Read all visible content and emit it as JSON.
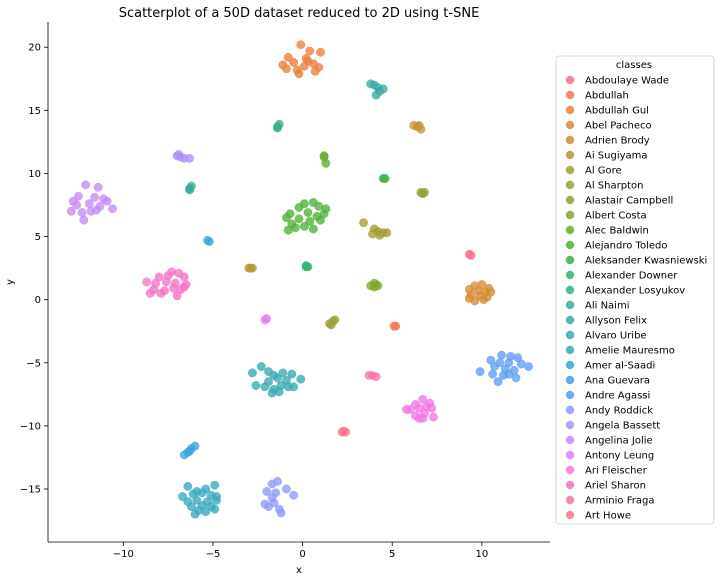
{
  "chart_data": {
    "type": "scatter",
    "title": "Scatterplot of a 50D dataset reduced to 2D using t-SNE",
    "xlabel": "x",
    "ylabel": "y",
    "xlim": [
      -14.2,
      13.8
    ],
    "ylim": [
      -19.2,
      22.0
    ],
    "x_ticks": [
      -10,
      -5,
      0,
      5,
      10
    ],
    "y_ticks": [
      -15,
      -10,
      -5,
      0,
      5,
      10,
      15,
      20
    ],
    "grid": false,
    "legend": {
      "title": "classes",
      "placement": "right"
    },
    "series": [
      {
        "name": "Abdoulaye Wade",
        "color": "#f77189",
        "points": [
          [
            9.3,
            3.6
          ],
          [
            9.4,
            3.5
          ]
        ]
      },
      {
        "name": "Abdullah",
        "color": "#f6735b",
        "points": [
          [
            5.1,
            -2.1
          ],
          [
            5.2,
            -2.1
          ]
        ]
      },
      {
        "name": "Abdullah Gul",
        "color": "#ec7f3c",
        "points": [
          [
            -0.1,
            20.2
          ],
          [
            0.4,
            19.7
          ],
          [
            1.0,
            19.6
          ],
          [
            -0.8,
            19.2
          ],
          [
            0.2,
            19.1
          ],
          [
            -0.5,
            18.8
          ],
          [
            0.6,
            18.7
          ],
          [
            -1.1,
            18.6
          ],
          [
            0.1,
            18.5
          ],
          [
            0.9,
            18.4
          ],
          [
            -0.3,
            18.2
          ],
          [
            0.7,
            18.1
          ],
          [
            -0.9,
            18.3
          ],
          [
            -0.2,
            17.9
          ],
          [
            0.3,
            18.9
          ]
        ]
      },
      {
        "name": "Abel Pacheco",
        "color": "#d48a35",
        "points": [
          [
            9.6,
            1.1
          ],
          [
            10.0,
            1.2
          ],
          [
            10.4,
            0.9
          ],
          [
            9.3,
            0.8
          ],
          [
            9.8,
            0.7
          ],
          [
            10.2,
            0.6
          ],
          [
            10.5,
            0.6
          ],
          [
            9.4,
            0.4
          ],
          [
            9.9,
            0.3
          ],
          [
            10.3,
            0.2
          ],
          [
            9.6,
            -0.1
          ],
          [
            10.1,
            0.0
          ],
          [
            9.3,
            0.1
          ]
        ]
      },
      {
        "name": "Adrien Brody",
        "color": "#c39233",
        "points": [
          [
            6.2,
            13.8
          ],
          [
            6.5,
            13.8
          ],
          [
            6.4,
            13.7
          ],
          [
            6.6,
            13.5
          ]
        ]
      },
      {
        "name": "Ai Sugiyama",
        "color": "#b49832",
        "points": [
          [
            -2.9,
            2.5
          ],
          [
            -3.0,
            2.5
          ],
          [
            -2.8,
            2.5
          ]
        ]
      },
      {
        "name": "Al Gore",
        "color": "#a59c32",
        "points": [
          [
            3.4,
            6.1
          ],
          [
            4.0,
            5.6
          ],
          [
            4.2,
            5.4
          ],
          [
            4.5,
            5.3
          ],
          [
            3.9,
            5.2
          ],
          [
            4.3,
            5.1
          ],
          [
            4.7,
            5.3
          ]
        ]
      },
      {
        "name": "Al Sharpton",
        "color": "#9aa032",
        "points": [
          [
            1.5,
            -1.9
          ],
          [
            1.7,
            -1.7
          ],
          [
            1.8,
            -1.6
          ],
          [
            1.6,
            -2.0
          ]
        ]
      },
      {
        "name": "Alastair Campbell",
        "color": "#8ea332",
        "points": [
          [
            6.6,
            8.5
          ],
          [
            6.8,
            8.5
          ],
          [
            6.7,
            8.4
          ]
        ]
      },
      {
        "name": "Albert Costa",
        "color": "#7fa632",
        "points": [
          [
            3.8,
            1.1
          ],
          [
            4.1,
            1.2
          ],
          [
            4.0,
            1.3
          ],
          [
            4.2,
            1.1
          ],
          [
            4.0,
            1.0
          ]
        ]
      },
      {
        "name": "Alec Baldwin",
        "color": "#6aaa33",
        "points": [
          [
            1.2,
            11.4
          ],
          [
            1.3,
            10.8
          ],
          [
            1.2,
            11.3
          ]
        ]
      },
      {
        "name": "Alejandro Toledo",
        "color": "#4fb037",
        "points": [
          [
            0.1,
            7.6
          ],
          [
            0.6,
            7.7
          ],
          [
            -0.2,
            7.3
          ],
          [
            0.9,
            7.4
          ],
          [
            1.3,
            7.2
          ],
          [
            -0.7,
            6.8
          ],
          [
            0.3,
            6.9
          ],
          [
            0.8,
            6.6
          ],
          [
            1.2,
            6.8
          ],
          [
            -0.9,
            6.5
          ],
          [
            -0.2,
            6.4
          ],
          [
            0.4,
            6.2
          ],
          [
            1.0,
            6.3
          ],
          [
            -0.6,
            6.0
          ],
          [
            0.1,
            5.8
          ],
          [
            0.6,
            5.6
          ],
          [
            -0.4,
            5.7
          ],
          [
            -0.8,
            5.5
          ]
        ]
      },
      {
        "name": "Aleksander Kwasniewski",
        "color": "#37b346",
        "points": [
          [
            4.5,
            9.6
          ],
          [
            4.6,
            9.6
          ]
        ]
      },
      {
        "name": "Alexander Downer",
        "color": "#34b170",
        "points": [
          [
            0.2,
            2.6
          ],
          [
            0.3,
            2.6
          ],
          [
            0.2,
            2.7
          ]
        ]
      },
      {
        "name": "Alexander Losyukov",
        "color": "#35ae86",
        "points": [
          [
            -1.4,
            13.7
          ],
          [
            -1.3,
            13.9
          ],
          [
            -1.4,
            13.6
          ]
        ]
      },
      {
        "name": "Ali Naimi",
        "color": "#36ac96",
        "points": [
          [
            -6.3,
            8.8
          ],
          [
            -6.2,
            9.0
          ],
          [
            -6.3,
            8.7
          ]
        ]
      },
      {
        "name": "Allyson Felix",
        "color": "#37aaa4",
        "points": [
          [
            3.8,
            17.1
          ],
          [
            4.0,
            17.0
          ],
          [
            4.2,
            16.8
          ],
          [
            4.5,
            16.7
          ],
          [
            4.3,
            16.5
          ],
          [
            4.1,
            16.2
          ]
        ]
      },
      {
        "name": "Alvaro Uribe",
        "color": "#38a9b1",
        "points": [
          [
            -2.8,
            -5.8
          ],
          [
            -2.3,
            -5.3
          ],
          [
            -1.9,
            -5.7
          ],
          [
            -1.6,
            -6.0
          ],
          [
            -1.1,
            -5.8
          ],
          [
            -0.6,
            -5.9
          ],
          [
            -0.1,
            -6.3
          ],
          [
            -1.9,
            -6.5
          ],
          [
            -1.4,
            -6.2
          ],
          [
            -0.9,
            -6.4
          ],
          [
            -2.6,
            -6.8
          ],
          [
            -2.1,
            -6.9
          ],
          [
            -1.6,
            -7.1
          ],
          [
            -1.2,
            -6.8
          ],
          [
            -0.8,
            -6.9
          ],
          [
            -0.5,
            -6.9
          ],
          [
            -1.7,
            -7.4
          ],
          [
            -1.3,
            -7.3
          ]
        ]
      },
      {
        "name": "Amelie Mauresmo",
        "color": "#3aa8bd",
        "points": [
          [
            -6.4,
            -14.8
          ],
          [
            -5.9,
            -15.2
          ],
          [
            -5.4,
            -15.0
          ],
          [
            -4.9,
            -14.7
          ],
          [
            -6.7,
            -15.6
          ],
          [
            -6.1,
            -15.4
          ],
          [
            -5.6,
            -15.3
          ],
          [
            -5.1,
            -15.5
          ],
          [
            -4.8,
            -15.6
          ],
          [
            -6.4,
            -16.0
          ],
          [
            -5.9,
            -15.9
          ],
          [
            -5.3,
            -16.0
          ],
          [
            -4.8,
            -15.9
          ],
          [
            -6.2,
            -16.4
          ],
          [
            -5.6,
            -16.3
          ],
          [
            -5.1,
            -16.4
          ],
          [
            -4.9,
            -16.6
          ],
          [
            -5.8,
            -16.7
          ],
          [
            -5.4,
            -16.8
          ],
          [
            -6.0,
            -17.0
          ]
        ]
      },
      {
        "name": "Amer al-Saadi",
        "color": "#3ca6cc",
        "points": [
          [
            -5.2,
            4.6
          ],
          [
            -5.3,
            4.7
          ]
        ]
      },
      {
        "name": "Ana Guevara",
        "color": "#3ea3dc",
        "points": [
          [
            -6.0,
            -11.6
          ],
          [
            -6.2,
            -11.8
          ],
          [
            -6.4,
            -12.1
          ],
          [
            -6.6,
            -12.3
          ],
          [
            -6.3,
            -12.0
          ]
        ]
      },
      {
        "name": "Andre Agassi",
        "color": "#5a9ef4",
        "points": [
          [
            11.1,
            -4.4
          ],
          [
            11.6,
            -4.5
          ],
          [
            12.0,
            -4.6
          ],
          [
            10.5,
            -4.8
          ],
          [
            11.0,
            -5.0
          ],
          [
            11.5,
            -5.0
          ],
          [
            12.2,
            -5.1
          ],
          [
            12.6,
            -5.3
          ],
          [
            9.9,
            -5.7
          ],
          [
            10.7,
            -5.3
          ],
          [
            11.3,
            -5.5
          ],
          [
            11.8,
            -5.6
          ],
          [
            10.6,
            -5.9
          ],
          [
            11.2,
            -6.0
          ],
          [
            11.9,
            -6.2
          ],
          [
            10.9,
            -6.5
          ],
          [
            11.5,
            -5.9
          ]
        ]
      },
      {
        "name": "Andy Roddick",
        "color": "#8d9af6",
        "points": [
          [
            -1.4,
            -14.4
          ],
          [
            -1.7,
            -14.6
          ],
          [
            -0.9,
            -15.0
          ],
          [
            -2.0,
            -15.2
          ],
          [
            -1.5,
            -15.3
          ],
          [
            -0.5,
            -15.5
          ],
          [
            -1.7,
            -15.7
          ],
          [
            -2.1,
            -16.2
          ],
          [
            -1.6,
            -16.1
          ],
          [
            -1.3,
            -16.6
          ],
          [
            -1.2,
            -16.9
          ],
          [
            -1.9,
            -16.4
          ]
        ]
      },
      {
        "name": "Angela Bassett",
        "color": "#ab92f6",
        "points": [
          [
            -7.0,
            11.4
          ],
          [
            -6.8,
            11.3
          ],
          [
            -6.6,
            11.2
          ],
          [
            -6.3,
            11.2
          ],
          [
            -6.9,
            11.5
          ]
        ]
      },
      {
        "name": "Angelina Jolie",
        "color": "#c589f6",
        "points": [
          [
            -12.1,
            9.1
          ],
          [
            -11.4,
            8.9
          ],
          [
            -12.5,
            8.2
          ],
          [
            -11.6,
            8.1
          ],
          [
            -11.1,
            8.0
          ],
          [
            -12.8,
            7.8
          ],
          [
            -11.9,
            7.6
          ],
          [
            -11.3,
            7.4
          ],
          [
            -10.6,
            7.2
          ],
          [
            -12.9,
            7.0
          ],
          [
            -12.3,
            6.9
          ],
          [
            -11.5,
            7.1
          ],
          [
            -12.2,
            6.3
          ],
          [
            -11.8,
            7.0
          ],
          [
            -10.9,
            7.8
          ],
          [
            -12.6,
            7.5
          ]
        ]
      },
      {
        "name": "Antony Leung",
        "color": "#df7ff6",
        "points": [
          [
            -2.1,
            -1.6
          ],
          [
            -2.0,
            -1.5
          ]
        ]
      },
      {
        "name": "Ari Fleischer",
        "color": "#f176e3",
        "points": [
          [
            6.7,
            -7.9
          ],
          [
            7.1,
            -8.2
          ],
          [
            6.3,
            -8.3
          ],
          [
            6.9,
            -8.5
          ],
          [
            7.2,
            -8.6
          ],
          [
            6.0,
            -8.7
          ],
          [
            6.5,
            -8.6
          ],
          [
            6.8,
            -9.0
          ],
          [
            6.3,
            -9.2
          ],
          [
            6.7,
            -9.4
          ],
          [
            7.3,
            -9.3
          ],
          [
            6.5,
            -9.4
          ],
          [
            5.8,
            -8.7
          ]
        ]
      },
      {
        "name": "Ariel Sharon",
        "color": "#f572c6",
        "points": [
          [
            -7.3,
            2.2
          ],
          [
            -6.9,
            2.1
          ],
          [
            -8.0,
            1.8
          ],
          [
            -7.5,
            1.9
          ],
          [
            -6.6,
            1.8
          ],
          [
            -8.7,
            1.4
          ],
          [
            -8.2,
            1.3
          ],
          [
            -7.6,
            1.4
          ],
          [
            -7.1,
            1.3
          ],
          [
            -6.5,
            1.2
          ],
          [
            -8.3,
            0.8
          ],
          [
            -7.7,
            0.7
          ],
          [
            -7.2,
            0.9
          ],
          [
            -6.8,
            0.8
          ],
          [
            -8.5,
            0.5
          ],
          [
            -7.9,
            0.5
          ],
          [
            -7.0,
            0.3
          ],
          [
            -6.6,
            1.0
          ]
        ]
      },
      {
        "name": "Arminio Fraga",
        "color": "#f676ac",
        "points": [
          [
            3.7,
            -6.0
          ],
          [
            3.9,
            -6.0
          ],
          [
            4.1,
            -6.1
          ]
        ]
      },
      {
        "name": "Art Howe",
        "color": "#f7748f",
        "points": [
          [
            2.2,
            -10.5
          ],
          [
            2.4,
            -10.5
          ],
          [
            2.3,
            -10.4
          ]
        ]
      }
    ]
  }
}
